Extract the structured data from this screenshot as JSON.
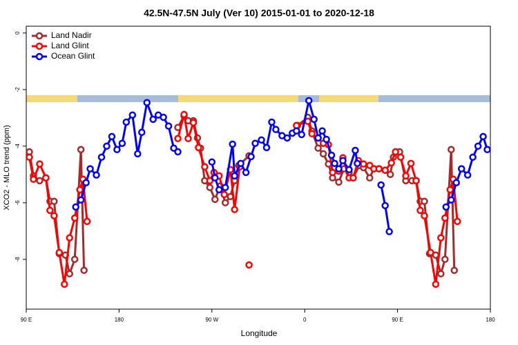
{
  "chart_data": {
    "type": "line",
    "title": "42.5N-47.5N July (Ver 10)   2015-01-01 to 2020-12-18",
    "x_label": "Longitude",
    "y_label": "XCO2 - MLO trend (ppm)",
    "xlim": [
      90,
      540
    ],
    "xticks": [
      {
        "value": 90,
        "label": "90 E"
      },
      {
        "value": 180,
        "label": "180"
      },
      {
        "value": 270,
        "label": "90 W"
      },
      {
        "value": 360,
        "label": "0"
      },
      {
        "value": 450,
        "label": "90 E"
      },
      {
        "value": 540,
        "label": "180"
      }
    ],
    "ylim": [
      -9.76,
      0.24
    ],
    "yticks": [
      0,
      -2,
      -4,
      -6,
      -8
    ],
    "legend": "top-left",
    "series": [
      {
        "name": "Land Nadir",
        "color": "#a52a2a",
        "x": [
          93,
          97,
          103,
          109,
          113,
          117,
          122,
          128,
          132,
          137,
          143,
          146,
          null,
          237,
          243,
          247,
          252,
          256,
          259,
          263,
          268,
          273,
          278,
          283,
          288,
          292,
          296,
          306,
          null,
          353,
          363,
          367,
          373,
          378,
          383,
          387,
          393,
          398,
          403,
          407,
          413,
          417,
          423,
          427,
          432,
          438,
          443,
          446,
          452,
          458,
          464,
          468,
          472,
          476,
          481,
          487,
          492,
          496,
          502,
          505
        ],
        "values": [
          -4.2,
          -5.05,
          -5.22,
          -5.12,
          -5.95,
          -5.95,
          -7.8,
          -7.85,
          -8.51,
          -8.0,
          -4.12,
          -8.39,
          null,
          -3.34,
          -2.93,
          -3.1,
          -3.1,
          -3.71,
          -4.07,
          -5.22,
          -5.46,
          -5.88,
          -5.41,
          -6.0,
          -5.78,
          -5.22,
          -4.68,
          -4.34,
          null,
          -3.27,
          -2.98,
          -3.46,
          -4.07,
          -4.27,
          -4.63,
          -5.12,
          -5.27,
          -4.8,
          -4.93,
          -5.12,
          -4.68,
          -4.76,
          -5.12,
          -4.8,
          -4.8,
          -4.85,
          -5.0,
          -4.39,
          -4.2,
          -5.22,
          -5.22,
          -5.22,
          -5.95,
          -5.95,
          -7.8,
          -7.85,
          -8.51,
          -8.0,
          -4.12,
          -8.39
        ]
      },
      {
        "name": "Land Glint",
        "color": "#ff0000",
        "x": [
          93,
          97,
          103,
          109,
          113,
          117,
          122,
          127,
          132,
          137,
          142,
          145,
          149,
          null,
          237,
          243,
          247,
          252,
          257,
          263,
          268,
          272,
          277,
          282,
          288,
          292,
          297,
          null,
          306,
          null,
          352,
          363,
          367,
          373,
          378,
          383,
          387,
          393,
          397,
          403,
          407,
          412,
          417,
          423,
          427,
          432,
          438,
          444,
          448,
          453,
          458,
          463,
          468,
          472,
          476,
          482,
          487,
          492,
          496,
          501,
          504,
          508
        ],
        "values": [
          -4.39,
          -5.17,
          -4.63,
          -5.12,
          -6.27,
          -6.46,
          -7.76,
          -8.88,
          -7.24,
          -6.54,
          -5.54,
          -5.17,
          -6.66,
          null,
          -3.73,
          -2.88,
          -3.73,
          -3.17,
          -4.05,
          -4.73,
          -5.22,
          -4.93,
          -5.05,
          -5.71,
          -4.83,
          -6.24,
          -4.73,
          null,
          -8.2,
          null,
          -3.27,
          -3.12,
          -3.56,
          -3.71,
          -3.9,
          -3.95,
          -4.93,
          -4.88,
          -4.41,
          -5.12,
          -5.12,
          -4.51,
          -4.63,
          -4.68,
          -4.8,
          -4.8,
          -4.85,
          -4.59,
          -4.2,
          -4.39,
          -5.05,
          -4.61,
          -5.22,
          -6.27,
          -6.46,
          -7.76,
          -8.88,
          -7.24,
          -6.54,
          -5.54,
          -5.17,
          -6.66
        ]
      },
      {
        "name": "Ocean Glint",
        "color": "#0000ff",
        "x": [
          138,
          143,
          148,
          152,
          158,
          163,
          168,
          173,
          178,
          183,
          187,
          193,
          198,
          202,
          207,
          213,
          218,
          223,
          228,
          233,
          237,
          null,
          270,
          273,
          277,
          283,
          290,
          292,
          298,
          303,
          308,
          312,
          318,
          323,
          328,
          332,
          338,
          343,
          348,
          352,
          357,
          364,
          369,
          373,
          377,
          381,
          386,
          389,
          393,
          397,
          403,
          409,
          411,
          null,
          434,
          438,
          442,
          null,
          497,
          502,
          507,
          512,
          518,
          523,
          528,
          533,
          537
        ],
        "values": [
          -6.15,
          -5.9,
          -5.29,
          -4.8,
          -5.02,
          -4.39,
          -4.0,
          -3.66,
          -4.12,
          -3.9,
          -3.15,
          -2.9,
          -4.27,
          -3.51,
          -2.46,
          -3.05,
          -2.9,
          -2.98,
          -3.29,
          -4.07,
          -4.2,
          null,
          -4.56,
          -5.12,
          -5.54,
          -5.46,
          -3.93,
          -5.05,
          -4.61,
          -4.93,
          -4.37,
          -3.9,
          -3.78,
          -4.05,
          -3.15,
          -3.41,
          -3.63,
          -3.71,
          -3.54,
          -3.46,
          -3.59,
          -2.39,
          -3.05,
          -3.71,
          -3.46,
          -3.76,
          -4.32,
          -4.61,
          -4.8,
          -4.51,
          -4.83,
          -4.15,
          -4.61,
          null,
          -5.37,
          -6.1,
          -7.02,
          null,
          -6.15,
          -5.9,
          -5.29,
          -4.8,
          -5.02,
          -4.39,
          -4.0,
          -3.66,
          -4.12
        ]
      }
    ]
  }
}
